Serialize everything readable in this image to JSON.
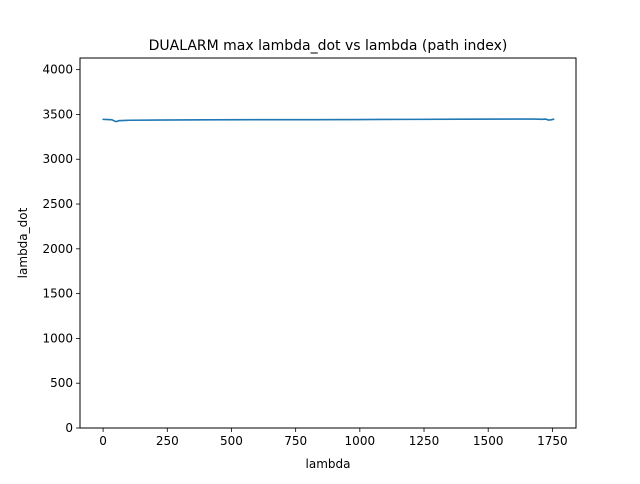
{
  "chart_data": {
    "type": "line",
    "title": "DUALARM max lambda_dot vs lambda (path index)",
    "xlabel": "lambda",
    "ylabel": "lambda_dot",
    "xlim": [
      -90,
      1842
    ],
    "ylim": [
      0,
      4130
    ],
    "xticks": [
      0,
      250,
      500,
      750,
      1000,
      1250,
      1500,
      1750
    ],
    "xtick_labels": [
      "0",
      "250",
      "500",
      "750",
      "1000",
      "1250",
      "1500",
      "1750"
    ],
    "yticks": [
      0,
      500,
      1000,
      1500,
      2000,
      2500,
      3000,
      3500,
      4000
    ],
    "ytick_labels": [
      "0",
      "500",
      "1000",
      "1500",
      "2000",
      "2500",
      "3000",
      "3500",
      "4000"
    ],
    "grid": false,
    "series": [
      {
        "color": "#1f77b4",
        "x": [
          0,
          20,
          35,
          45,
          52,
          60,
          70,
          100,
          200,
          400,
          600,
          800,
          1000,
          1200,
          1400,
          1600,
          1680,
          1710,
          1725,
          1735,
          1745,
          1755
        ],
        "y": [
          3445,
          3443,
          3440,
          3425,
          3420,
          3430,
          3432,
          3435,
          3437,
          3440,
          3441,
          3442,
          3443,
          3445,
          3447,
          3448,
          3448,
          3446,
          3448,
          3437,
          3440,
          3447
        ]
      }
    ]
  }
}
